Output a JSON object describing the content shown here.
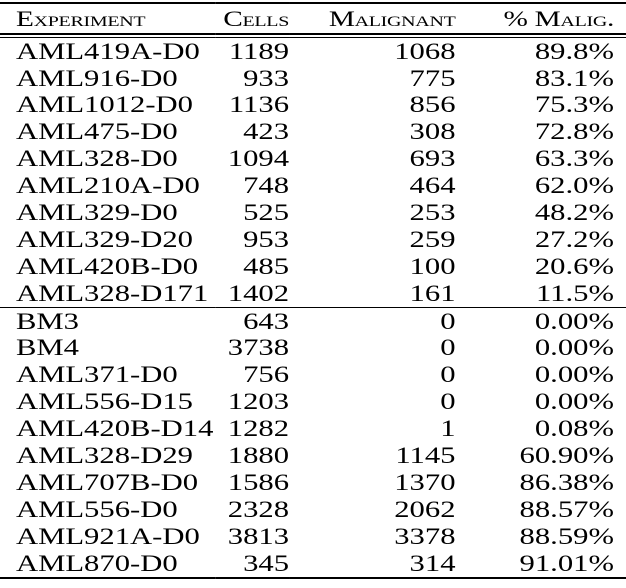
{
  "page": {
    "background": "#ffffff",
    "text_color": "#000000",
    "rule_color": "#000000"
  },
  "table": {
    "headers": [
      "Experiment",
      "Cells",
      "Malignant",
      "% Malig."
    ],
    "groups": [
      {
        "rows": [
          [
            "AML419A-D0",
            "1189",
            "1068",
            "89.8%"
          ],
          [
            "AML916-D0",
            "933",
            "775",
            "83.1%"
          ],
          [
            "AML1012-D0",
            "1136",
            "856",
            "75.3%"
          ],
          [
            "AML475-D0",
            "423",
            "308",
            "72.8%"
          ],
          [
            "AML328-D0",
            "1094",
            "693",
            "63.3%"
          ],
          [
            "AML210A-D0",
            "748",
            "464",
            "62.0%"
          ],
          [
            "AML329-D0",
            "525",
            "253",
            "48.2%"
          ],
          [
            "AML329-D20",
            "953",
            "259",
            "27.2%"
          ],
          [
            "AML420B-D0",
            "485",
            "100",
            "20.6%"
          ],
          [
            "AML328-D171",
            "1402",
            "161",
            "11.5%"
          ]
        ]
      },
      {
        "rows": [
          [
            "BM3",
            "643",
            "0",
            "0.00%"
          ],
          [
            "BM4",
            "3738",
            "0",
            "0.00%"
          ],
          [
            "AML371-D0",
            "756",
            "0",
            "0.00%"
          ],
          [
            "AML556-D15",
            "1203",
            "0",
            "0.00%"
          ],
          [
            "AML420B-D14",
            "1282",
            "1",
            "0.08%"
          ],
          [
            "AML328-D29",
            "1880",
            "1145",
            "60.90%"
          ],
          [
            "AML707B-D0",
            "1586",
            "1370",
            "86.38%"
          ],
          [
            "AML556-D0",
            "2328",
            "2062",
            "88.57%"
          ],
          [
            "AML921A-D0",
            "3813",
            "3378",
            "88.59%"
          ],
          [
            "AML870-D0",
            "345",
            "314",
            "91.01%"
          ]
        ]
      }
    ]
  }
}
